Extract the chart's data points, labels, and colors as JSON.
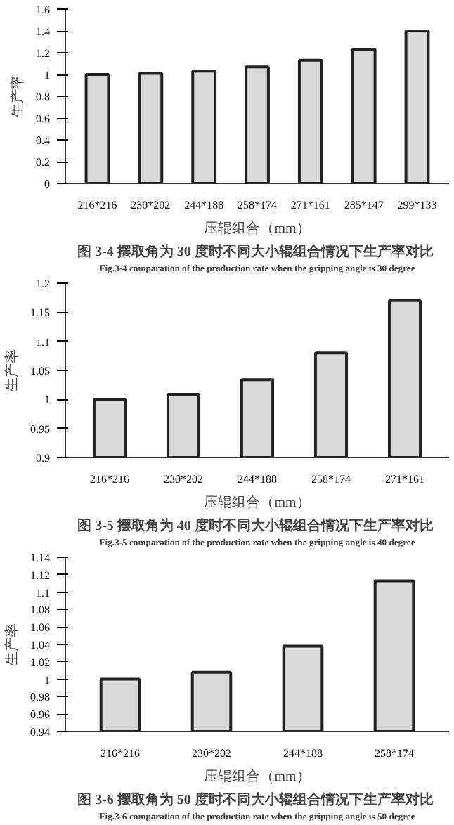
{
  "chart_data": [
    {
      "type": "bar",
      "categories": [
        "216*216",
        "230*202",
        "244*188",
        "258*174",
        "271*161",
        "285*147",
        "299*133"
      ],
      "values": [
        1.0,
        1.01,
        1.03,
        1.07,
        1.13,
        1.23,
        1.4
      ],
      "color": "#d9d9d9",
      "ylim": [
        0,
        1.6
      ],
      "yticks": [
        0,
        0.2,
        0.4,
        0.6,
        0.8,
        1,
        1.2,
        1.4,
        1.6
      ],
      "xlabel": "压辊组合（mm）",
      "ylabel": "生产率",
      "grid": false,
      "annotations": [
        "图 3-4  摆取角为 30 度时不同大小辊组合情况下生产率对比",
        "Fig.3-4 comparation of the production rate when the gripping angle is 30 degree"
      ]
    },
    {
      "type": "bar",
      "categories": [
        "216*216",
        "230*202",
        "244*188",
        "258*174",
        "271*161"
      ],
      "values": [
        1.0,
        1.009,
        1.034,
        1.08,
        1.17
      ],
      "color": "#d9d9d9",
      "ylim": [
        0.9,
        1.2
      ],
      "yticks": [
        0.9,
        0.95,
        1,
        1.05,
        1.1,
        1.15,
        1.2
      ],
      "xlabel": "压辊组合（mm）",
      "ylabel": "生产率",
      "grid": false,
      "annotations": [
        "图 3-5  摆取角为 40 度时不同大小辊组合情况下生产率对比",
        "Fig.3-5 comparation of the production rate when the gripping angle is 40 degree"
      ]
    },
    {
      "type": "bar",
      "categories": [
        "216*216",
        "230*202",
        "244*188",
        "258*174"
      ],
      "values": [
        1.0,
        1.008,
        1.038,
        1.113
      ],
      "color": "#d9d9d9",
      "ylim": [
        0.94,
        1.14
      ],
      "yticks": [
        0.94,
        0.96,
        0.98,
        1,
        1.02,
        1.04,
        1.06,
        1.08,
        1.1,
        1.12,
        1.14
      ],
      "xlabel": "压辊组合（mm）",
      "ylabel": "生产率",
      "grid": false,
      "annotations": [
        "图 3-6  摆取角为 50 度时不同大小辊组合情况下生产率对比",
        "Fig.3-6 comparation of the production rate when the gripping angle is 50 degree"
      ]
    }
  ]
}
